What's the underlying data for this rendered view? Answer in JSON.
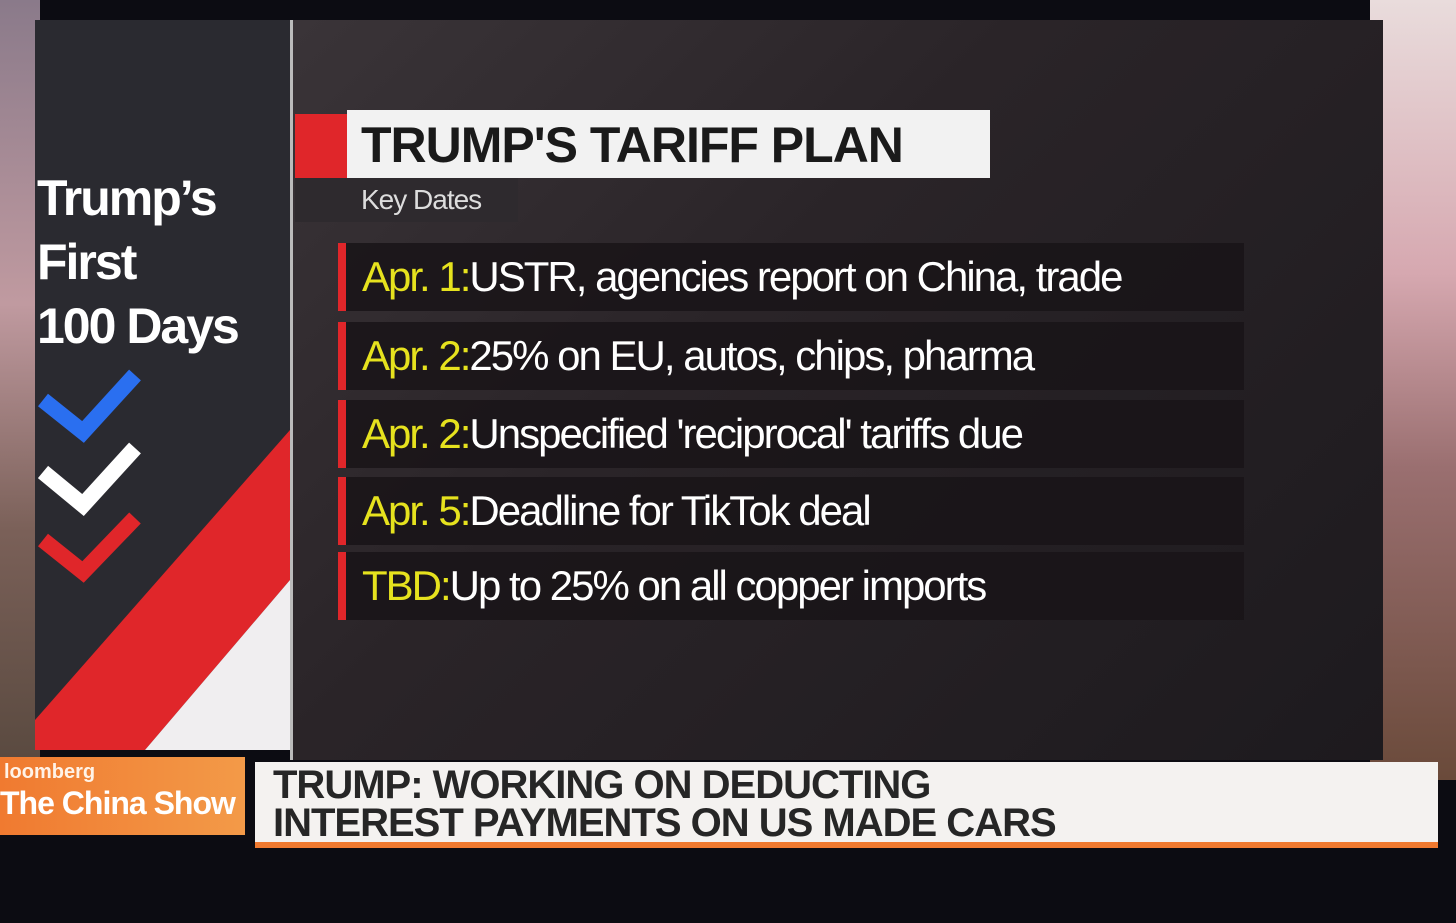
{
  "sidebar": {
    "title_lines": [
      "Trump’s",
      "First",
      "100 Days"
    ]
  },
  "panel": {
    "title": "TRUMP'S TARIFF PLAN",
    "subtitle": "Key Dates",
    "items": [
      {
        "date": "Apr. 1:",
        "text": "USTR, agencies report on China, trade"
      },
      {
        "date": "Apr. 2:",
        "text": "25% on EU, autos, chips, pharma"
      },
      {
        "date": "Apr. 2:",
        "text": "Unspecified 'reciprocal' tariffs due"
      },
      {
        "date": "Apr. 5:",
        "text": "Deadline for TikTok deal"
      },
      {
        "date": "TBD:",
        "text": "Up to 25% on all copper imports"
      }
    ]
  },
  "ticker": {
    "brand": "loomberg",
    "show": "The China Show",
    "headline_lines": [
      "TRUMP: WORKING ON DEDUCTING",
      "INTEREST PAYMENTS ON US MADE CARS"
    ]
  }
}
